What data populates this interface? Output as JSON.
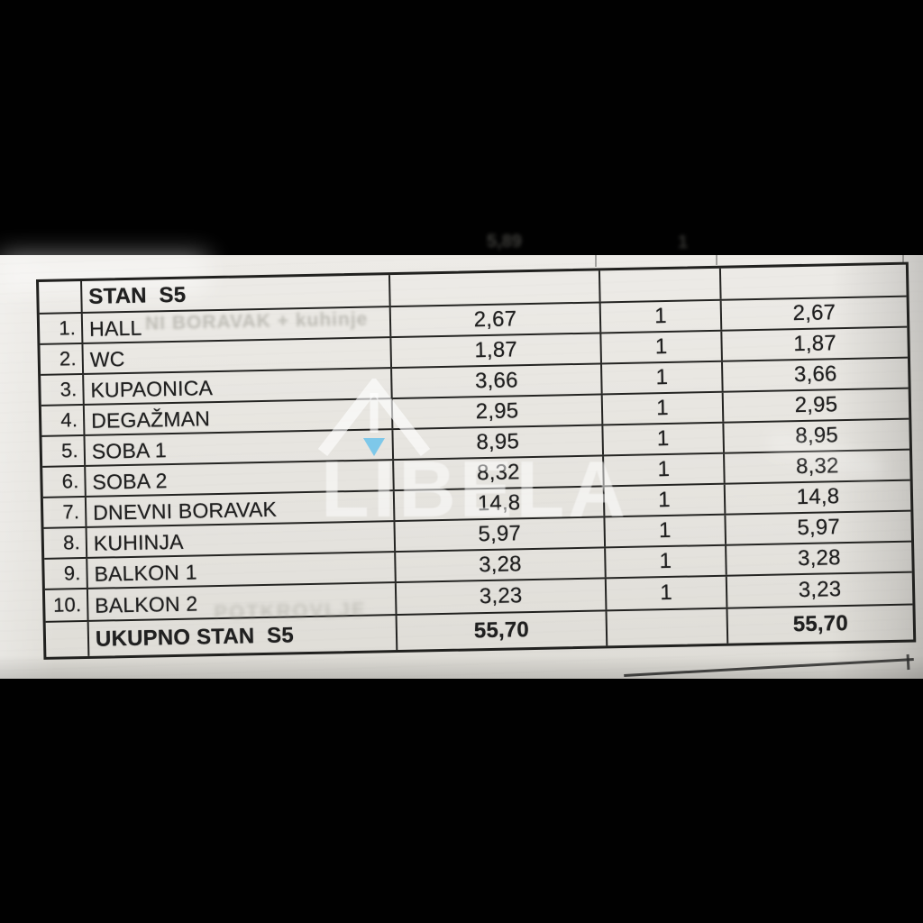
{
  "colors": {
    "background": "#010101",
    "paper": "#e7e5e0",
    "ink": "#21211f",
    "watermark_white": "rgba(255,255,255,0.5)",
    "watermark_blue": "#72c4ea"
  },
  "table": {
    "title": "STAN  S5",
    "rows": [
      {
        "num": "1.",
        "label": "HALL",
        "area": "2,67",
        "count": "1",
        "total": "2,67"
      },
      {
        "num": "2.",
        "label": "WC",
        "area": "1,87",
        "count": "1",
        "total": "1,87"
      },
      {
        "num": "3.",
        "label": "KUPAONICA",
        "area": "3,66",
        "count": "1",
        "total": "3,66"
      },
      {
        "num": "4.",
        "label": "DEGAŽMAN",
        "area": "2,95",
        "count": "1",
        "total": "2,95"
      },
      {
        "num": "5.",
        "label": "SOBA 1",
        "area": "8,95",
        "count": "1",
        "total": "8,95"
      },
      {
        "num": "6.",
        "label": "SOBA 2",
        "area": "8,32",
        "count": "1",
        "total": "8,32"
      },
      {
        "num": "7.",
        "label": "DNEVNI BORAVAK",
        "area": "14,8",
        "count": "1",
        "total": "14,8"
      },
      {
        "num": "8.",
        "label": "KUHINJA",
        "area": "5,97",
        "count": "1",
        "total": "5,97"
      },
      {
        "num": "9.",
        "label": "BALKON 1",
        "area": "3,28",
        "count": "1",
        "total": "3,28"
      },
      {
        "num": "10.",
        "label": "BALKON 2",
        "area": "3,23",
        "count": "1",
        "total": "3,23"
      }
    ],
    "total": {
      "label": "UKUPNO STAN  S5",
      "area": "55,70",
      "count": "",
      "total": "55,70"
    }
  },
  "watermark": {
    "text": "LIBELA"
  },
  "ghost_bleedthrough": {
    "row1": "NI BORAVAK + kuhinje",
    "balkon2_row": "POTKROVLJE",
    "top_fragment": "5,89",
    "top_fragment2": "1"
  }
}
